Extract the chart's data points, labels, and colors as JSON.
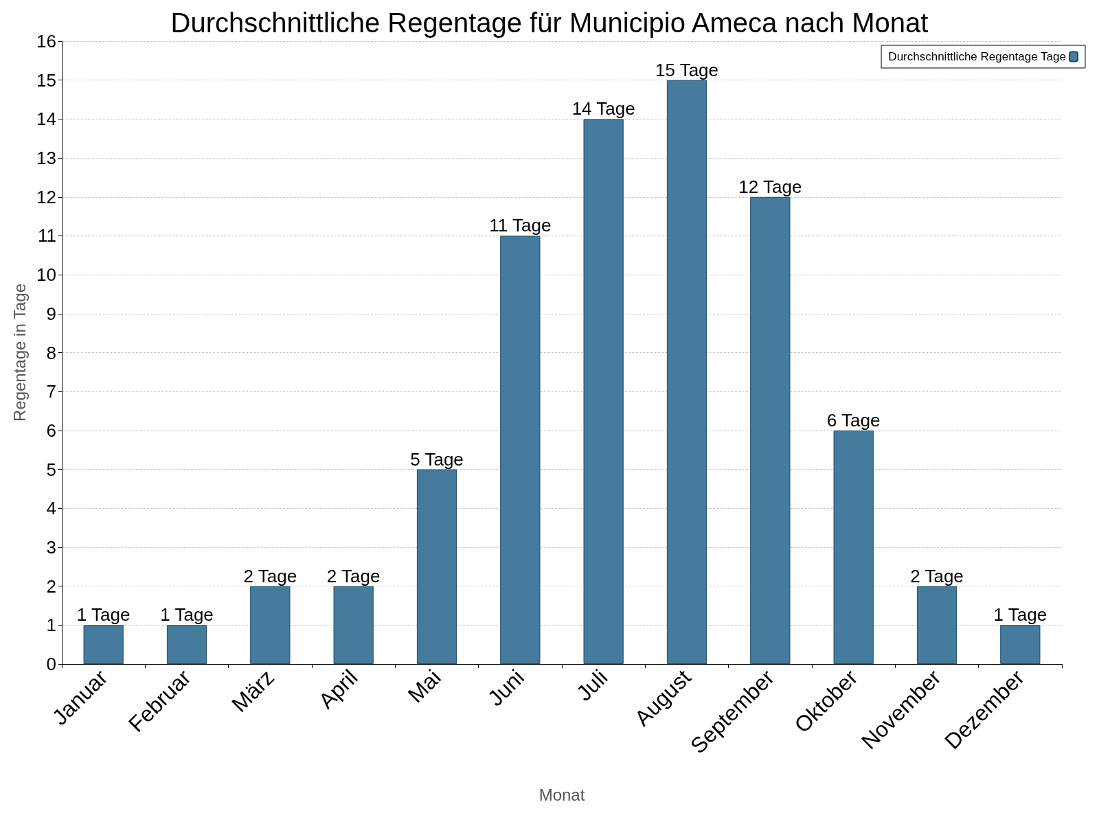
{
  "chart_data": {
    "type": "bar",
    "title": "Durchschnittliche Regentage für Municipio Ameca nach Monat",
    "xlabel": "Monat",
    "ylabel": "Regentage in Tage",
    "categories": [
      "Januar",
      "Februar",
      "März",
      "April",
      "Mai",
      "Juni",
      "Juli",
      "August",
      "September",
      "Oktober",
      "November",
      "Dezember"
    ],
    "series": [
      {
        "name": "Durchschnittliche Regentage Tage",
        "color": "#457b9d",
        "values": [
          1,
          1,
          2,
          2,
          5,
          11,
          14,
          15,
          12,
          6,
          2,
          1
        ],
        "value_labels": [
          "1 Tage",
          "1 Tage",
          "2 Tage",
          "2 Tage",
          "5 Tage",
          "11 Tage",
          "14 Tage",
          "15 Tage",
          "12 Tage",
          "6 Tage",
          "2 Tage",
          "1 Tage"
        ]
      }
    ],
    "ylim": [
      0,
      16
    ],
    "yticks": [
      0,
      1,
      2,
      3,
      4,
      5,
      6,
      7,
      8,
      9,
      10,
      11,
      12,
      13,
      14,
      15,
      16
    ],
    "grid": "y",
    "legend": "top right"
  }
}
